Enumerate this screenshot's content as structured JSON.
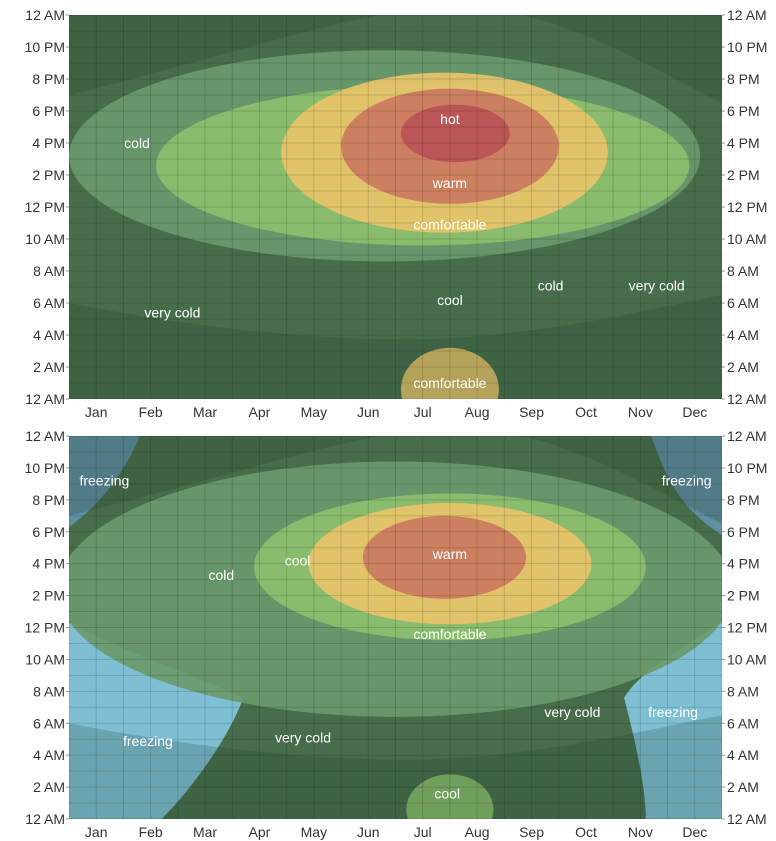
{
  "chart_data": [
    {
      "type": "heatmap",
      "title": "",
      "xlabel": "",
      "ylabel": "",
      "x_categories": [
        "Jan",
        "Feb",
        "Mar",
        "Apr",
        "May",
        "Jun",
        "Jul",
        "Aug",
        "Sep",
        "Oct",
        "Nov",
        "Dec"
      ],
      "y_ticks": [
        "12 AM",
        "2 AM",
        "4 AM",
        "6 AM",
        "8 AM",
        "10 AM",
        "12 PM",
        "2 PM",
        "4 PM",
        "6 PM",
        "8 PM",
        "10 PM",
        "12 AM"
      ],
      "ylim": [
        0,
        24
      ],
      "xlim": [
        0,
        12
      ],
      "grid": true,
      "colors": {
        "very cold": "#476d4b",
        "cold": "#6a9a6c",
        "cool": "#8cbf6d",
        "comfortable": "#e8c46a",
        "warm": "#cb7a5e",
        "hot": "#b85456"
      },
      "contours": [
        {
          "band": "cold",
          "cx": 5.8,
          "cy": 15.2,
          "rx": 5.8,
          "ry": 6.6
        },
        {
          "band": "cool",
          "cx": 6.5,
          "cy": 14.6,
          "rx": 4.9,
          "ry": 5.0
        },
        {
          "band": "comfortable",
          "cx": 6.9,
          "cy": 15.4,
          "rx": 3.0,
          "ry": 5.0
        },
        {
          "band": "warm",
          "cx": 7.0,
          "cy": 15.8,
          "rx": 2.0,
          "ry": 3.6
        },
        {
          "band": "hot",
          "cx": 7.1,
          "cy": 16.6,
          "rx": 1.0,
          "ry": 1.8
        },
        {
          "band": "comfortable",
          "cx": 7.0,
          "cy": 0.6,
          "rx": 0.9,
          "ry": 2.6
        }
      ],
      "annotations": [
        {
          "text": "cold",
          "x": 1.25,
          "y": 16.0
        },
        {
          "text": "very cold",
          "x": 1.9,
          "y": 5.4
        },
        {
          "text": "hot",
          "x": 7.0,
          "y": 17.5
        },
        {
          "text": "warm",
          "x": 7.0,
          "y": 13.5
        },
        {
          "text": "comfortable",
          "x": 7.0,
          "y": 10.9
        },
        {
          "text": "cool",
          "x": 7.0,
          "y": 6.2
        },
        {
          "text": "cold",
          "x": 8.85,
          "y": 7.1
        },
        {
          "text": "very cold",
          "x": 10.8,
          "y": 7.1
        },
        {
          "text": "comfortable",
          "x": 7.0,
          "y": 1.0
        }
      ]
    },
    {
      "type": "heatmap",
      "title": "",
      "xlabel": "",
      "ylabel": "",
      "x_categories": [
        "Jan",
        "Feb",
        "Mar",
        "Apr",
        "May",
        "Jun",
        "Jul",
        "Aug",
        "Sep",
        "Oct",
        "Nov",
        "Dec"
      ],
      "y_ticks": [
        "12 AM",
        "2 AM",
        "4 AM",
        "6 AM",
        "8 AM",
        "10 AM",
        "12 PM",
        "2 PM",
        "4 PM",
        "6 PM",
        "8 PM",
        "10 PM",
        "12 AM"
      ],
      "ylim": [
        0,
        24
      ],
      "xlim": [
        0,
        12
      ],
      "grid": true,
      "colors": {
        "freezing": "#5f8fa3",
        "freezing-light": "#7ebfd4",
        "very cold": "#476d4b",
        "cold": "#6a9a6c",
        "cool": "#8cbf6d",
        "comfortable": "#e8c46a",
        "warm": "#cb7a5e"
      },
      "contours": [
        {
          "band": "cold",
          "cx": 6.0,
          "cy": 14.4,
          "rx": 6.2,
          "ry": 8.0
        },
        {
          "band": "cool",
          "cx": 7.0,
          "cy": 15.8,
          "rx": 3.6,
          "ry": 4.6
        },
        {
          "band": "comfortable",
          "cx": 7.0,
          "cy": 16.0,
          "rx": 2.6,
          "ry": 3.8
        },
        {
          "band": "warm",
          "cx": 6.9,
          "cy": 16.4,
          "rx": 1.5,
          "ry": 2.6
        },
        {
          "band": "cool",
          "cx": 7.0,
          "cy": 0.6,
          "rx": 0.8,
          "ry": 2.2
        }
      ],
      "regions": [
        {
          "band": "freezing",
          "corner": "top-left"
        },
        {
          "band": "freezing",
          "corner": "top-right"
        },
        {
          "band": "freezing-light",
          "corner": "bottom-left"
        },
        {
          "band": "freezing-light",
          "corner": "bottom-right"
        }
      ],
      "annotations": [
        {
          "text": "freezing",
          "x": 0.65,
          "y": 21.2
        },
        {
          "text": "freezing",
          "x": 11.35,
          "y": 21.2
        },
        {
          "text": "cool",
          "x": 4.2,
          "y": 16.2
        },
        {
          "text": "cold",
          "x": 2.8,
          "y": 15.3
        },
        {
          "text": "warm",
          "x": 7.0,
          "y": 16.6
        },
        {
          "text": "comfortable",
          "x": 7.0,
          "y": 11.6
        },
        {
          "text": "very cold",
          "x": 9.25,
          "y": 6.7
        },
        {
          "text": "freezing",
          "x": 11.1,
          "y": 6.7
        },
        {
          "text": "very cold",
          "x": 4.3,
          "y": 5.1
        },
        {
          "text": "freezing",
          "x": 1.45,
          "y": 4.9
        },
        {
          "text": "cool",
          "x": 6.95,
          "y": 1.6
        }
      ]
    }
  ]
}
